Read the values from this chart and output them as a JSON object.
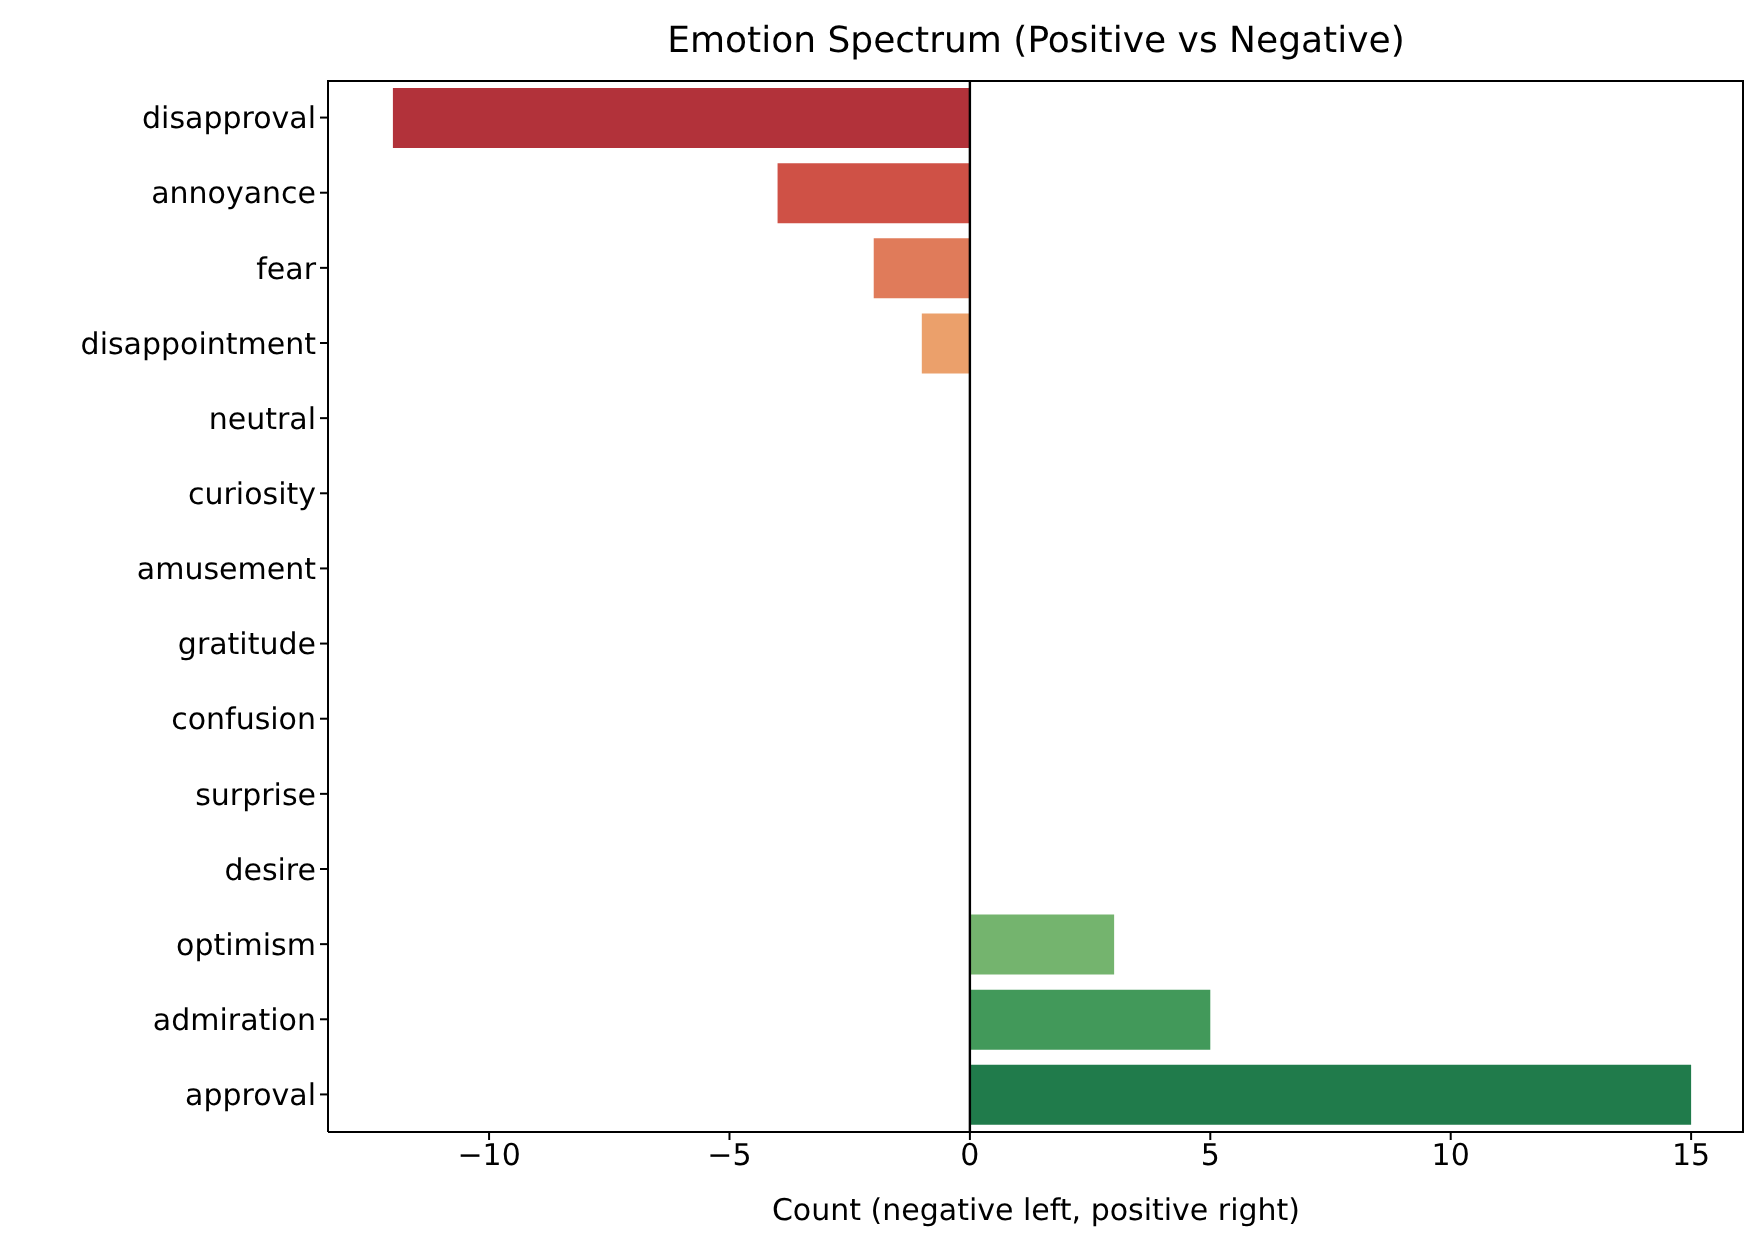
{
  "chart_data": {
    "type": "bar",
    "orientation": "horizontal",
    "title": "Emotion Spectrum (Positive vs Negative)",
    "xlabel": "Count (negative left, positive right)",
    "categories": [
      "disapproval",
      "annoyance",
      "fear",
      "disappointment",
      "neutral",
      "curiosity",
      "amusement",
      "gratitude",
      "confusion",
      "surprise",
      "desire",
      "optimism",
      "admiration",
      "approval"
    ],
    "values": [
      -12,
      -4,
      -2,
      -1,
      0,
      0,
      0,
      0,
      0,
      0,
      0,
      3,
      5,
      15
    ],
    "colors": [
      "#b2323a",
      "#cf5146",
      "#e07b5a",
      "#eba06b",
      "#f6c886",
      "#fae3a0",
      "#fdf5c0",
      "#f1f8c0",
      "#dcefa2",
      "#bde085",
      "#9bd07a",
      "#74b46e",
      "#42995a",
      "#207b4b"
    ],
    "xlim": [
      -13.35,
      16.1
    ],
    "xticks": [
      {
        "value": -10,
        "label": "−10"
      },
      {
        "value": -5,
        "label": "−5"
      },
      0,
      5,
      10,
      15
    ],
    "ref_lines": [
      {
        "axis": "x",
        "value": 0,
        "color": "#000000"
      }
    ],
    "grid": false
  }
}
